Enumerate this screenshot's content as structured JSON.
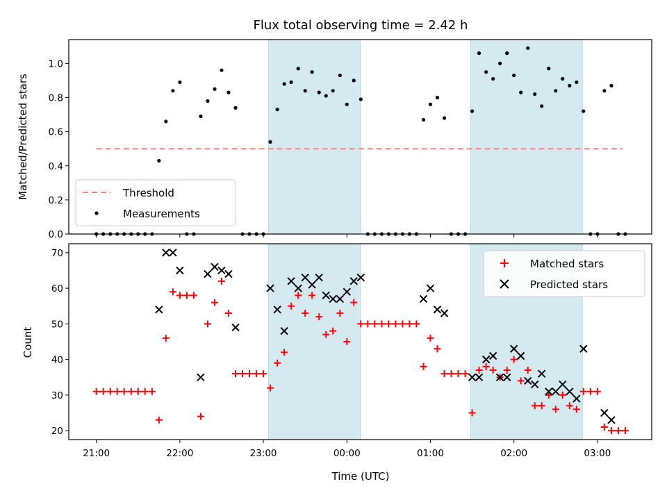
{
  "chart_data": [
    {
      "type": "scatter",
      "title": "Flux total observing time = 2.42 h",
      "xlabel": "",
      "ylabel": "Matched/Predicted stars",
      "ylim": [
        0,
        1.14
      ],
      "yticks": [
        "0.0",
        "0.2",
        "0.4",
        "0.6",
        "0.8",
        "1.0"
      ],
      "xlim_hours": [
        20.67,
        27.65
      ],
      "shaded_regions_hours": [
        [
          23.06,
          24.16
        ],
        [
          25.48,
          26.82
        ]
      ],
      "shade_color": "#d4eaf0",
      "legend": {
        "position": "lower-left",
        "entries": [
          "Threshold",
          "Measurements"
        ]
      },
      "threshold": {
        "name": "Threshold",
        "value": 0.5,
        "x_range_hours": [
          21.0,
          27.3
        ],
        "color": "#ff7f7f"
      },
      "series": [
        {
          "name": "Measurements",
          "marker": "dot",
          "color": "#000000",
          "points": [
            [
              21.0,
              0
            ],
            [
              21.083,
              0
            ],
            [
              21.167,
              0
            ],
            [
              21.25,
              0
            ],
            [
              21.333,
              0
            ],
            [
              21.417,
              0
            ],
            [
              21.5,
              0
            ],
            [
              21.583,
              0
            ],
            [
              21.667,
              0
            ],
            [
              21.75,
              0.43
            ],
            [
              21.833,
              0.66
            ],
            [
              21.917,
              0.84
            ],
            [
              22.0,
              0.89
            ],
            [
              22.083,
              0
            ],
            [
              22.167,
              0
            ],
            [
              22.25,
              0.69
            ],
            [
              22.333,
              0.78
            ],
            [
              22.417,
              0.85
            ],
            [
              22.5,
              0.96
            ],
            [
              22.583,
              0.83
            ],
            [
              22.667,
              0.74
            ],
            [
              22.75,
              0
            ],
            [
              22.833,
              0
            ],
            [
              22.917,
              0
            ],
            [
              23.0,
              0
            ],
            [
              23.083,
              0.54
            ],
            [
              23.167,
              0.73
            ],
            [
              23.25,
              0.88
            ],
            [
              23.333,
              0.89
            ],
            [
              23.417,
              0.97
            ],
            [
              23.5,
              0.84
            ],
            [
              23.583,
              0.95
            ],
            [
              23.667,
              0.83
            ],
            [
              23.75,
              0.81
            ],
            [
              23.833,
              0.84
            ],
            [
              23.917,
              0.93
            ],
            [
              24.0,
              0.76
            ],
            [
              24.083,
              0.9
            ],
            [
              24.167,
              0.79
            ],
            [
              24.25,
              0
            ],
            [
              24.333,
              0
            ],
            [
              24.417,
              0
            ],
            [
              24.5,
              0
            ],
            [
              24.583,
              0
            ],
            [
              24.667,
              0
            ],
            [
              24.75,
              0
            ],
            [
              24.833,
              0
            ],
            [
              24.917,
              0.67
            ],
            [
              25.0,
              0.76
            ],
            [
              25.083,
              0.8
            ],
            [
              25.167,
              0.68
            ],
            [
              25.25,
              0
            ],
            [
              25.333,
              0
            ],
            [
              25.417,
              0
            ],
            [
              25.5,
              0.72
            ],
            [
              25.583,
              1.06
            ],
            [
              25.667,
              0.95
            ],
            [
              25.75,
              0.91
            ],
            [
              25.833,
              1.0
            ],
            [
              25.917,
              1.06
            ],
            [
              26.0,
              0.93
            ],
            [
              26.083,
              0.83
            ],
            [
              26.167,
              1.09
            ],
            [
              26.25,
              0.82
            ],
            [
              26.333,
              0.75
            ],
            [
              26.417,
              0.97
            ],
            [
              26.5,
              0.84
            ],
            [
              26.583,
              0.91
            ],
            [
              26.667,
              0.87
            ],
            [
              26.75,
              0.89
            ],
            [
              26.833,
              0.72
            ],
            [
              26.917,
              0
            ],
            [
              27.0,
              0
            ],
            [
              27.083,
              0.84
            ],
            [
              27.167,
              0.87
            ],
            [
              27.25,
              0
            ],
            [
              27.333,
              0
            ]
          ]
        }
      ]
    },
    {
      "type": "scatter",
      "title": "",
      "xlabel": "Time (UTC)",
      "ylabel": "Count",
      "ylim": [
        17.5,
        72.5
      ],
      "yticks": [
        "20",
        "30",
        "40",
        "50",
        "60",
        "70"
      ],
      "xticks": [
        "21:00",
        "22:00",
        "23:00",
        "00:00",
        "01:00",
        "02:00",
        "03:00"
      ],
      "xticks_hours": [
        21,
        22,
        23,
        24,
        25,
        26,
        27
      ],
      "legend": {
        "position": "top-right",
        "entries": [
          "Matched stars",
          "Predicted stars"
        ]
      },
      "series": [
        {
          "name": "Matched stars",
          "marker": "plus",
          "color": "#ff0000",
          "points": [
            [
              21.0,
              31
            ],
            [
              21.083,
              31
            ],
            [
              21.167,
              31
            ],
            [
              21.25,
              31
            ],
            [
              21.333,
              31
            ],
            [
              21.417,
              31
            ],
            [
              21.5,
              31
            ],
            [
              21.583,
              31
            ],
            [
              21.667,
              31
            ],
            [
              21.75,
              23
            ],
            [
              21.833,
              46
            ],
            [
              21.917,
              59
            ],
            [
              22.0,
              58
            ],
            [
              22.083,
              58
            ],
            [
              22.167,
              58
            ],
            [
              22.25,
              24
            ],
            [
              22.333,
              50
            ],
            [
              22.417,
              56
            ],
            [
              22.5,
              62
            ],
            [
              22.583,
              53
            ],
            [
              22.667,
              36
            ],
            [
              22.75,
              36
            ],
            [
              22.833,
              36
            ],
            [
              22.917,
              36
            ],
            [
              23.0,
              36
            ],
            [
              23.083,
              32
            ],
            [
              23.167,
              39
            ],
            [
              23.25,
              42
            ],
            [
              23.333,
              55
            ],
            [
              23.417,
              58
            ],
            [
              23.5,
              53
            ],
            [
              23.583,
              58
            ],
            [
              23.667,
              52
            ],
            [
              23.75,
              47
            ],
            [
              23.833,
              48
            ],
            [
              23.917,
              53
            ],
            [
              24.0,
              45
            ],
            [
              24.083,
              56
            ],
            [
              24.167,
              50
            ],
            [
              24.25,
              50
            ],
            [
              24.333,
              50
            ],
            [
              24.417,
              50
            ],
            [
              24.5,
              50
            ],
            [
              24.583,
              50
            ],
            [
              24.667,
              50
            ],
            [
              24.75,
              50
            ],
            [
              24.833,
              50
            ],
            [
              24.917,
              38
            ],
            [
              25.0,
              46
            ],
            [
              25.083,
              43
            ],
            [
              25.167,
              36
            ],
            [
              25.25,
              36
            ],
            [
              25.333,
              36
            ],
            [
              25.417,
              36
            ],
            [
              25.5,
              25
            ],
            [
              25.583,
              37
            ],
            [
              25.667,
              38
            ],
            [
              25.75,
              37
            ],
            [
              25.833,
              35
            ],
            [
              25.917,
              37
            ],
            [
              26.0,
              40
            ],
            [
              26.083,
              34
            ],
            [
              26.167,
              37
            ],
            [
              26.25,
              27
            ],
            [
              26.333,
              27
            ],
            [
              26.417,
              30
            ],
            [
              26.5,
              26
            ],
            [
              26.583,
              30
            ],
            [
              26.667,
              27
            ],
            [
              26.75,
              26
            ],
            [
              26.833,
              31
            ],
            [
              26.917,
              31
            ],
            [
              27.0,
              31
            ],
            [
              27.083,
              21
            ],
            [
              27.167,
              20
            ],
            [
              27.25,
              20
            ],
            [
              27.333,
              20
            ]
          ]
        },
        {
          "name": "Predicted stars",
          "marker": "x",
          "color": "#000000",
          "points": [
            [
              21.75,
              54
            ],
            [
              21.833,
              70
            ],
            [
              21.917,
              70
            ],
            [
              22.0,
              65
            ],
            [
              22.25,
              35
            ],
            [
              22.333,
              64
            ],
            [
              22.417,
              66
            ],
            [
              22.5,
              65
            ],
            [
              22.583,
              64
            ],
            [
              22.667,
              49
            ],
            [
              23.083,
              60
            ],
            [
              23.167,
              54
            ],
            [
              23.25,
              48
            ],
            [
              23.333,
              62
            ],
            [
              23.417,
              60
            ],
            [
              23.5,
              63
            ],
            [
              23.583,
              61
            ],
            [
              23.667,
              63
            ],
            [
              23.75,
              58
            ],
            [
              23.833,
              57
            ],
            [
              23.917,
              57
            ],
            [
              24.0,
              59
            ],
            [
              24.083,
              62
            ],
            [
              24.167,
              63
            ],
            [
              24.917,
              57
            ],
            [
              25.0,
              60
            ],
            [
              25.083,
              54
            ],
            [
              25.167,
              53
            ],
            [
              25.5,
              35
            ],
            [
              25.583,
              35
            ],
            [
              25.667,
              40
            ],
            [
              25.75,
              41
            ],
            [
              25.833,
              35
            ],
            [
              25.917,
              35
            ],
            [
              26.0,
              43
            ],
            [
              26.083,
              41
            ],
            [
              26.167,
              34
            ],
            [
              26.25,
              33
            ],
            [
              26.333,
              36
            ],
            [
              26.417,
              31
            ],
            [
              26.5,
              31
            ],
            [
              26.583,
              33
            ],
            [
              26.667,
              31
            ],
            [
              26.75,
              29
            ],
            [
              26.833,
              43
            ],
            [
              27.083,
              25
            ],
            [
              27.167,
              23
            ]
          ]
        }
      ]
    }
  ]
}
